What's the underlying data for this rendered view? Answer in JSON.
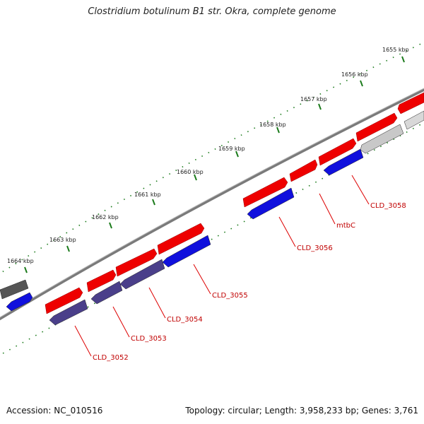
{
  "title": "Clostridium botulinum B1 str. Okra, complete genome",
  "footer": {
    "accession": "Accession: NC_010516",
    "info": "Topology: circular; Length: 3,958,233 bp; Genes: 3,761"
  },
  "kbp_labels": [
    "1655 kbp",
    "1656 kbp",
    "1657 kbp",
    "1658 kbp",
    "1659 kbp",
    "1660 kbp",
    "1661 kbp",
    "1662 kbp",
    "1663 kbp",
    "1664 kbp"
  ],
  "gene_labels": [
    "CLD_3058",
    "mtbC",
    "CLD_3056",
    "CLD_3055",
    "CLD_3054",
    "CLD_3053",
    "CLD_3052"
  ],
  "colors": {
    "forward": "#ee0000",
    "reverse_blue": "#1010dd",
    "reverse_purple": "#4a3f8a",
    "gray_dark": "#555555",
    "gray_light": "#c8c8c8",
    "backbone": "#7a7a7a",
    "ticks": "#1a7a1a",
    "label": "#c00000"
  }
}
